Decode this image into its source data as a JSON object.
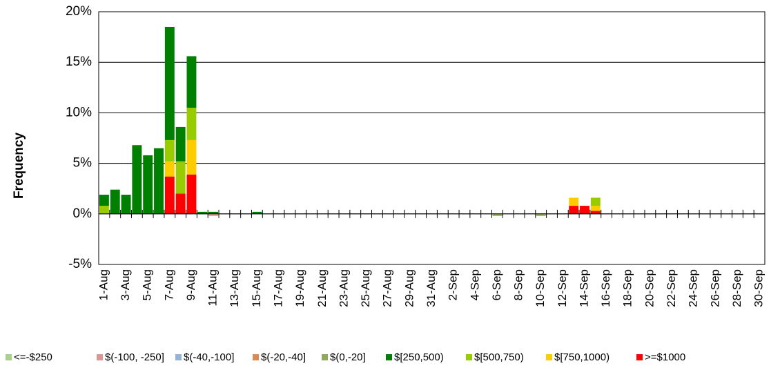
{
  "chart_data": {
    "type": "bar",
    "stacked": true,
    "y_label": "Frequency",
    "categories": [
      "1-Aug",
      null,
      "3-Aug",
      null,
      "5-Aug",
      null,
      "7-Aug",
      null,
      "9-Aug",
      null,
      "11-Aug",
      null,
      "13-Aug",
      null,
      "15-Aug",
      null,
      "17-Aug",
      null,
      "19-Aug",
      null,
      "21-Aug",
      null,
      "23-Aug",
      null,
      "25-Aug",
      null,
      "27-Aug",
      null,
      "29-Aug",
      null,
      "31-Aug",
      null,
      "2-Sep",
      null,
      "4-Sep",
      null,
      "6-Sep",
      null,
      "8-Sep",
      null,
      "10-Sep",
      null,
      "12-Sep",
      null,
      "14-Sep",
      null,
      "16-Sep",
      null,
      "18-Sep",
      null,
      "20-Sep",
      null,
      "22-Sep",
      null,
      "24-Sep",
      null,
      "26-Sep",
      null,
      "28-Sep",
      null,
      "30-Sep"
    ],
    "ylim": [
      -5,
      20
    ],
    "yticks": [
      {
        "value": -5,
        "label": "-5%"
      },
      {
        "value": 0,
        "label": "0%"
      },
      {
        "value": 5,
        "label": "5%"
      },
      {
        "value": 10,
        "label": "10%"
      },
      {
        "value": 15,
        "label": "15%"
      },
      {
        "value": 20,
        "label": "20%"
      }
    ],
    "grid": true,
    "legend": "bottom",
    "series": [
      {
        "name": "<=-$250",
        "color": "#a9d18e",
        "values": [
          null,
          null,
          null,
          null,
          null,
          null,
          null,
          null,
          null,
          null,
          null,
          null,
          null,
          null,
          null,
          null,
          null,
          null,
          null,
          null,
          null,
          null,
          null,
          null,
          null,
          null,
          null,
          null,
          null,
          null,
          null,
          null,
          null,
          null,
          null,
          null,
          null,
          null,
          null,
          null,
          null,
          null,
          null,
          null,
          null,
          null,
          null,
          null,
          null,
          null,
          null,
          null,
          null,
          null,
          null,
          null,
          null,
          null,
          null,
          null,
          null
        ]
      },
      {
        "name": "$(-100, -250]",
        "color": "#d99694",
        "values": [
          null,
          null,
          null,
          null,
          null,
          null,
          null,
          null,
          null,
          null,
          -0.2,
          null,
          null,
          null,
          null,
          null,
          null,
          null,
          null,
          null,
          null,
          null,
          null,
          null,
          null,
          null,
          null,
          null,
          null,
          null,
          null,
          null,
          null,
          null,
          null,
          null,
          null,
          null,
          null,
          null,
          null,
          null,
          null,
          null,
          null,
          null,
          null,
          null,
          null,
          null,
          null,
          null,
          null,
          null,
          null,
          null,
          null,
          null,
          null,
          null,
          null
        ]
      },
      {
        "name": "$(-40,-100]",
        "color": "#95b3d7",
        "values": [
          null,
          null,
          null,
          null,
          null,
          null,
          null,
          null,
          null,
          null,
          null,
          null,
          null,
          null,
          null,
          null,
          null,
          null,
          null,
          null,
          null,
          null,
          null,
          null,
          null,
          null,
          null,
          null,
          null,
          null,
          null,
          null,
          null,
          null,
          null,
          null,
          null,
          null,
          null,
          null,
          null,
          null,
          null,
          null,
          null,
          null,
          null,
          null,
          null,
          null,
          null,
          null,
          null,
          null,
          null,
          null,
          null,
          null,
          null,
          null,
          null
        ]
      },
      {
        "name": "$(-20,-40]",
        "color": "#e0894b",
        "values": [
          null,
          null,
          null,
          null,
          null,
          null,
          null,
          null,
          null,
          null,
          null,
          null,
          null,
          null,
          null,
          null,
          null,
          null,
          null,
          null,
          null,
          null,
          null,
          null,
          null,
          null,
          null,
          null,
          null,
          null,
          null,
          null,
          null,
          null,
          null,
          null,
          null,
          null,
          null,
          null,
          null,
          null,
          null,
          null,
          null,
          null,
          null,
          null,
          null,
          null,
          null,
          null,
          null,
          null,
          null,
          null,
          null,
          null,
          null,
          null,
          null
        ]
      },
      {
        "name": "$(0,-20]",
        "color": "#8faa5c",
        "values": [
          null,
          null,
          null,
          null,
          null,
          null,
          null,
          null,
          null,
          null,
          null,
          null,
          null,
          null,
          null,
          null,
          null,
          null,
          null,
          null,
          null,
          null,
          null,
          null,
          null,
          null,
          null,
          null,
          null,
          null,
          null,
          null,
          null,
          null,
          null,
          null,
          -0.2,
          null,
          null,
          null,
          -0.2,
          null,
          null,
          null,
          null,
          null,
          null,
          null,
          null,
          null,
          null,
          null,
          null,
          null,
          null,
          null,
          null,
          null,
          null,
          null,
          null
        ]
      },
      {
        "name": "$[250,500)",
        "color": "#008000",
        "values": [
          1.1,
          2.4,
          1.9,
          6.8,
          5.8,
          6.5,
          11.2,
          3.4,
          5.1,
          0.2,
          0.2,
          null,
          null,
          null,
          0.2,
          null,
          null,
          null,
          null,
          null,
          null,
          null,
          null,
          null,
          null,
          null,
          null,
          null,
          null,
          null,
          null,
          null,
          null,
          null,
          null,
          null,
          null,
          null,
          null,
          null,
          null,
          null,
          null,
          null,
          null,
          null,
          null,
          null,
          null,
          null,
          null,
          null,
          null,
          null,
          null,
          null,
          null,
          null,
          null,
          null,
          null
        ]
      },
      {
        "name": "$[500,750)",
        "color": "#99cc00",
        "values": [
          0.8,
          null,
          null,
          null,
          null,
          null,
          2.1,
          3.2,
          3.2,
          null,
          null,
          null,
          null,
          null,
          null,
          null,
          null,
          null,
          null,
          null,
          null,
          null,
          null,
          null,
          null,
          null,
          null,
          null,
          null,
          null,
          null,
          null,
          null,
          null,
          null,
          null,
          null,
          null,
          null,
          null,
          null,
          null,
          null,
          null,
          null,
          0.8,
          null,
          null,
          null,
          null,
          null,
          null,
          null,
          null,
          null,
          null,
          null,
          null,
          null,
          null,
          null
        ]
      },
      {
        "name": "$[750,1000)",
        "color": "#ffcc00",
        "values": [
          null,
          null,
          null,
          null,
          null,
          null,
          1.5,
          null,
          3.4,
          null,
          null,
          null,
          null,
          null,
          null,
          null,
          null,
          null,
          null,
          null,
          null,
          null,
          null,
          null,
          null,
          null,
          null,
          null,
          null,
          null,
          null,
          null,
          null,
          null,
          null,
          null,
          null,
          null,
          null,
          null,
          null,
          null,
          null,
          0.8,
          null,
          0.5,
          null,
          null,
          null,
          null,
          null,
          null,
          null,
          null,
          null,
          null,
          null,
          null,
          null,
          null,
          null
        ]
      },
      {
        "name": ">=$1000",
        "color": "#ff0000",
        "values": [
          null,
          null,
          null,
          null,
          null,
          null,
          3.7,
          2.0,
          3.9,
          null,
          null,
          null,
          null,
          null,
          null,
          null,
          null,
          null,
          null,
          null,
          null,
          null,
          null,
          null,
          null,
          null,
          null,
          null,
          null,
          null,
          null,
          null,
          null,
          null,
          null,
          null,
          null,
          null,
          null,
          null,
          null,
          null,
          null,
          0.8,
          0.8,
          0.3,
          null,
          null,
          null,
          null,
          null,
          null,
          null,
          null,
          null,
          null,
          null,
          null,
          null,
          null,
          null
        ]
      }
    ]
  }
}
